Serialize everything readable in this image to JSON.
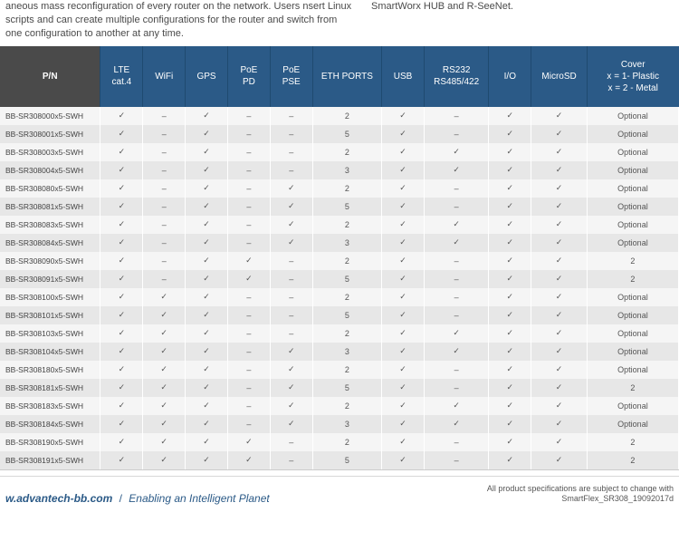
{
  "top": {
    "left": "aneous mass reconfiguration of every router on the network. Users nsert Linux scripts and can create multiple configurations for the router and switch from one configuration to another at any time.",
    "right": "SmartWorx HUB and R-SeeNet."
  },
  "cols": [
    "P/N",
    "LTE\ncat.4",
    "WiFi",
    "GPS",
    "PoE\nPD",
    "PoE\nPSE",
    "ETH PORTS",
    "USB",
    "RS232\nRS485/422",
    "I/O",
    "MicroSD",
    "Cover\nx = 1- Plastic\nx = 2 - Metal"
  ],
  "rows": [
    [
      "BB-SR308000x5-SWH",
      "✓",
      "–",
      "✓",
      "–",
      "–",
      "2",
      "✓",
      "–",
      "✓",
      "✓",
      "Optional"
    ],
    [
      "BB-SR308001x5-SWH",
      "✓",
      "–",
      "✓",
      "–",
      "–",
      "5",
      "✓",
      "–",
      "✓",
      "✓",
      "Optional"
    ],
    [
      "BB-SR308003x5-SWH",
      "✓",
      "–",
      "✓",
      "–",
      "–",
      "2",
      "✓",
      "✓",
      "✓",
      "✓",
      "Optional"
    ],
    [
      "BB-SR308004x5-SWH",
      "✓",
      "–",
      "✓",
      "–",
      "–",
      "3",
      "✓",
      "✓",
      "✓",
      "✓",
      "Optional"
    ],
    [
      "BB-SR308080x5-SWH",
      "✓",
      "–",
      "✓",
      "–",
      "✓",
      "2",
      "✓",
      "–",
      "✓",
      "✓",
      "Optional"
    ],
    [
      "BB-SR308081x5-SWH",
      "✓",
      "–",
      "✓",
      "–",
      "✓",
      "5",
      "✓",
      "–",
      "✓",
      "✓",
      "Optional"
    ],
    [
      "BB-SR308083x5-SWH",
      "✓",
      "–",
      "✓",
      "–",
      "✓",
      "2",
      "✓",
      "✓",
      "✓",
      "✓",
      "Optional"
    ],
    [
      "BB-SR308084x5-SWH",
      "✓",
      "–",
      "✓",
      "–",
      "✓",
      "3",
      "✓",
      "✓",
      "✓",
      "✓",
      "Optional"
    ],
    [
      "BB-SR308090x5-SWH",
      "✓",
      "–",
      "✓",
      "✓",
      "–",
      "2",
      "✓",
      "–",
      "✓",
      "✓",
      "2"
    ],
    [
      "BB-SR308091x5-SWH",
      "✓",
      "–",
      "✓",
      "✓",
      "–",
      "5",
      "✓",
      "–",
      "✓",
      "✓",
      "2"
    ],
    [
      "BB-SR308100x5-SWH",
      "✓",
      "✓",
      "✓",
      "–",
      "–",
      "2",
      "✓",
      "–",
      "✓",
      "✓",
      "Optional"
    ],
    [
      "BB-SR308101x5-SWH",
      "✓",
      "✓",
      "✓",
      "–",
      "–",
      "5",
      "✓",
      "–",
      "✓",
      "✓",
      "Optional"
    ],
    [
      "BB-SR308103x5-SWH",
      "✓",
      "✓",
      "✓",
      "–",
      "–",
      "2",
      "✓",
      "✓",
      "✓",
      "✓",
      "Optional"
    ],
    [
      "BB-SR308104x5-SWH",
      "✓",
      "✓",
      "✓",
      "–",
      "✓",
      "3",
      "✓",
      "✓",
      "✓",
      "✓",
      "Optional"
    ],
    [
      "BB-SR308180x5-SWH",
      "✓",
      "✓",
      "✓",
      "–",
      "✓",
      "2",
      "✓",
      "–",
      "✓",
      "✓",
      "Optional"
    ],
    [
      "BB-SR308181x5-SWH",
      "✓",
      "✓",
      "✓",
      "–",
      "✓",
      "5",
      "✓",
      "–",
      "✓",
      "✓",
      "2"
    ],
    [
      "BB-SR308183x5-SWH",
      "✓",
      "✓",
      "✓",
      "–",
      "✓",
      "2",
      "✓",
      "✓",
      "✓",
      "✓",
      "Optional"
    ],
    [
      "BB-SR308184x5-SWH",
      "✓",
      "✓",
      "✓",
      "–",
      "✓",
      "3",
      "✓",
      "✓",
      "✓",
      "✓",
      "Optional"
    ],
    [
      "BB-SR308190x5-SWH",
      "✓",
      "✓",
      "✓",
      "✓",
      "–",
      "2",
      "✓",
      "–",
      "✓",
      "✓",
      "2"
    ],
    [
      "BB-SR308191x5-SWH",
      "✓",
      "✓",
      "✓",
      "✓",
      "–",
      "5",
      "✓",
      "–",
      "✓",
      "✓",
      "2"
    ]
  ],
  "footer": {
    "url": "w.advantech-bb.com",
    "sep": "/",
    "tag": "Enabling an Intelligent Planet",
    "note1": "All product specifications are subject to change with",
    "note2": "SmartFlex_SR308_19092017d"
  }
}
